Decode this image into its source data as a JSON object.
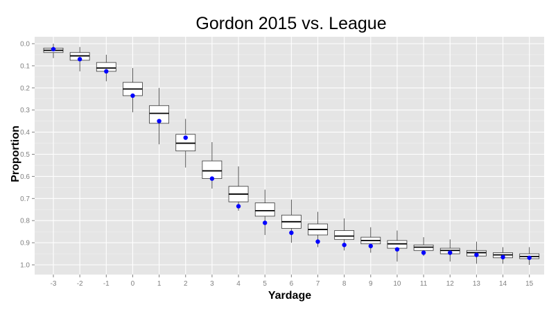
{
  "chart_data": {
    "type": "box",
    "title": "Gordon 2015 vs. League",
    "xlabel": "Yardage",
    "ylabel": "Proportion",
    "y_axis_reversed": true,
    "ylim": [
      0.0,
      1.0
    ],
    "y_ticks": [
      "0.0",
      "0.1",
      "0.2",
      "0.3",
      "0.4",
      "0.5",
      "0.6",
      "0.7",
      "0.8",
      "0.9",
      "1.0"
    ],
    "categories": [
      "-3",
      "-2",
      "-1",
      "0",
      "1",
      "2",
      "3",
      "4",
      "5",
      "6",
      "7",
      "8",
      "9",
      "10",
      "11",
      "12",
      "13",
      "14",
      "15"
    ],
    "grid": true,
    "panel_background": "#e5e5e5",
    "grid_color": "#ffffff",
    "box_series": {
      "whisker_low": [
        0.0,
        0.015,
        0.05,
        0.11,
        0.2,
        0.34,
        0.445,
        0.555,
        0.66,
        0.705,
        0.76,
        0.79,
        0.83,
        0.845,
        0.875,
        0.885,
        0.895,
        0.92,
        0.92
      ],
      "q1": [
        0.02,
        0.04,
        0.085,
        0.175,
        0.28,
        0.41,
        0.53,
        0.645,
        0.72,
        0.775,
        0.815,
        0.845,
        0.875,
        0.89,
        0.91,
        0.925,
        0.935,
        0.945,
        0.95
      ],
      "median": [
        0.03,
        0.055,
        0.11,
        0.205,
        0.315,
        0.45,
        0.575,
        0.68,
        0.755,
        0.805,
        0.84,
        0.87,
        0.89,
        0.905,
        0.92,
        0.935,
        0.945,
        0.955,
        0.962
      ],
      "q3": [
        0.04,
        0.075,
        0.125,
        0.235,
        0.36,
        0.485,
        0.61,
        0.715,
        0.78,
        0.835,
        0.865,
        0.885,
        0.905,
        0.925,
        0.935,
        0.95,
        0.96,
        0.968,
        0.972
      ],
      "whisker_high": [
        0.065,
        0.125,
        0.17,
        0.31,
        0.455,
        0.56,
        0.655,
        0.755,
        0.865,
        0.9,
        0.92,
        0.935,
        0.945,
        0.985,
        0.96,
        0.985,
        0.995,
        0.995,
        1.0
      ]
    },
    "points": {
      "color": "#0000ff",
      "values": [
        0.025,
        0.07,
        0.125,
        0.235,
        0.35,
        0.425,
        0.61,
        0.735,
        0.81,
        0.855,
        0.895,
        0.91,
        0.915,
        0.93,
        0.945,
        0.945,
        0.955,
        0.965,
        0.968
      ]
    }
  }
}
